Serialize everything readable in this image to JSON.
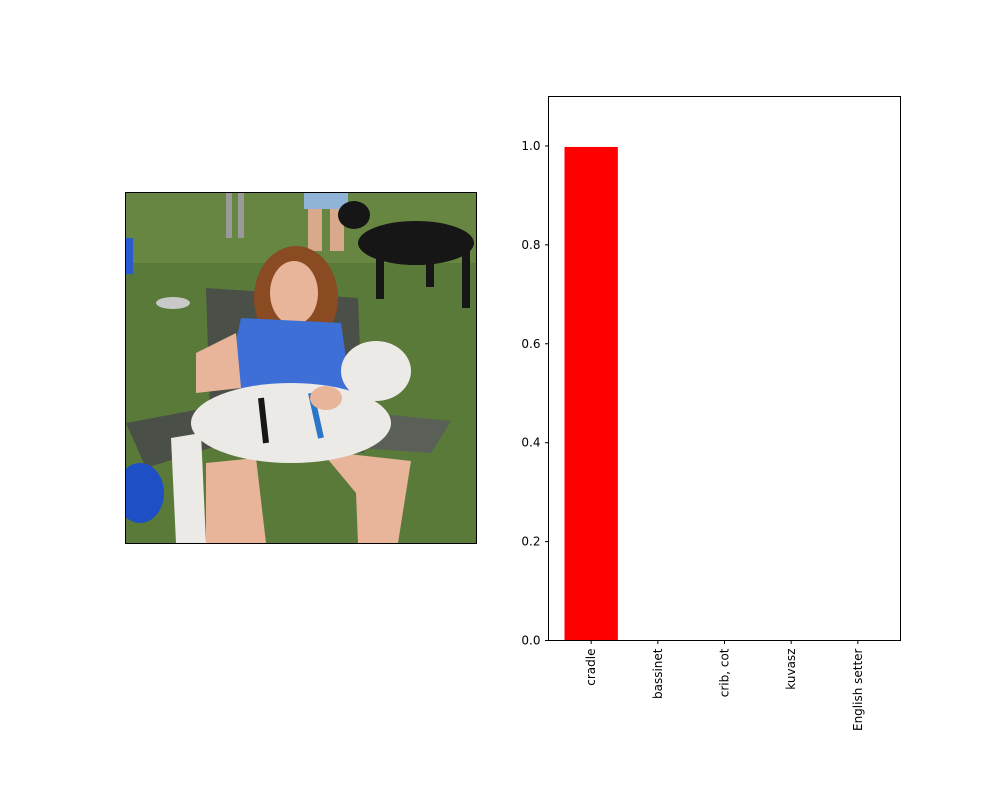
{
  "photo": {
    "subject": "woman-holding-white-dog-in-camp-chair",
    "colors": {
      "grass": "#5a7a3a",
      "grass_dark": "#3f5e2a",
      "shirt": "#3d6fd6",
      "hair": "#8a4a22",
      "skin": "#e8b49a",
      "dog_white": "#eceae6",
      "dog_black": "#161616",
      "chair": "#4a4f47",
      "bowl_blue": "#1f4fc4"
    }
  },
  "chart_data": {
    "type": "bar",
    "categories": [
      "cradle",
      "bassinet",
      "crib, cot",
      "kuvasz",
      "English setter"
    ],
    "values": [
      0.998,
      0.0008,
      0.0005,
      0.0003,
      0.0002
    ],
    "ylim": [
      0,
      1.1
    ],
    "yticks": [
      "0.0",
      "0.2",
      "0.4",
      "0.6",
      "0.8",
      "1.0"
    ],
    "bar_color": "#ff0000",
    "grid": false,
    "xlabel": "",
    "ylabel": "",
    "title": ""
  }
}
